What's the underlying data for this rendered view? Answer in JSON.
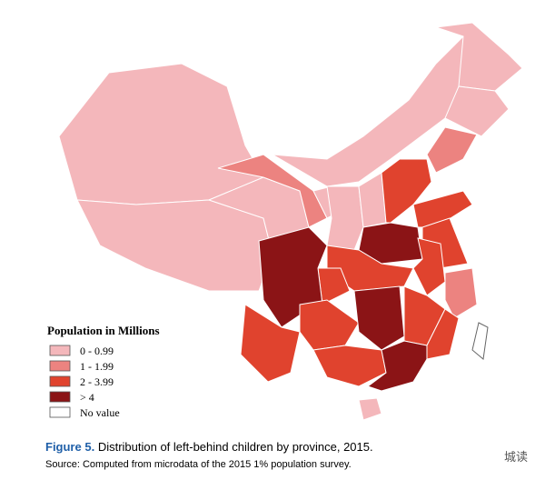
{
  "legend": {
    "title": "Population in Millions",
    "items": [
      {
        "label": "0 - 0.99",
        "color": "#f4b7bb"
      },
      {
        "label": "1 - 1.99",
        "color": "#ec8380"
      },
      {
        "label": "2 - 3.99",
        "color": "#e0432e"
      },
      {
        "label": "> 4",
        "color": "#8b1416"
      },
      {
        "label": "No value",
        "color": "#ffffff"
      }
    ]
  },
  "caption": {
    "figure": "Figure 5.",
    "text": "Distribution of left-behind children by province, 2015."
  },
  "source": "Source: Computed from microdata of the 2015 1% population survey.",
  "watermark": "城读"
}
